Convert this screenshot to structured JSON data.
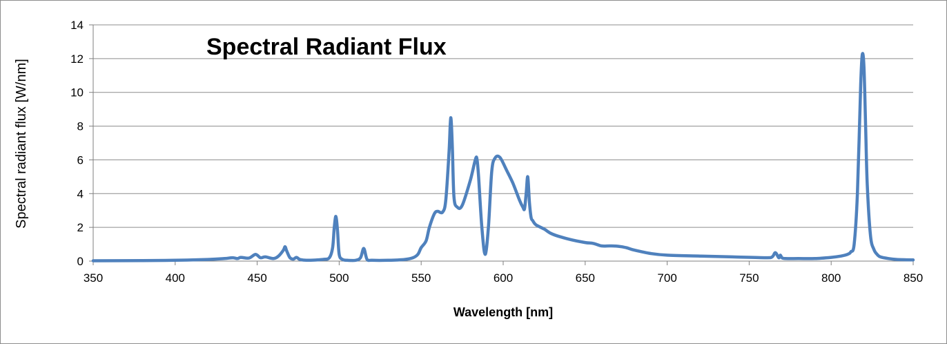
{
  "chart_data": {
    "type": "line",
    "title": "Spectral Radiant Flux",
    "xlabel": "Wavelength [nm]",
    "ylabel": "Spectral radiant flux [W/nm]",
    "xlim": [
      350,
      850
    ],
    "ylim": [
      0,
      14
    ],
    "xticks": [
      350,
      400,
      450,
      500,
      550,
      600,
      650,
      700,
      750,
      800,
      850
    ],
    "yticks": [
      0,
      2,
      4,
      6,
      8,
      10,
      12,
      14
    ],
    "grid": "horizontal",
    "line_color": "#4F81BD",
    "series": [
      {
        "x": [
          350,
          380,
          400,
          420,
          430,
          435,
          438,
          440,
          445,
          449,
          452,
          455,
          460,
          463,
          466,
          467,
          468,
          470,
          472,
          474,
          476,
          480,
          490,
          494,
          496,
          497,
          498,
          499,
          500,
          502,
          505,
          510,
          513,
          515,
          517,
          520,
          530,
          540,
          545,
          548,
          550,
          553,
          555,
          558,
          560,
          563,
          565,
          567,
          568,
          569,
          570,
          572,
          575,
          580,
          583,
          584,
          585,
          587,
          589,
          591,
          593,
          595,
          598,
          602,
          606,
          610,
          612,
          613,
          614,
          615,
          616,
          617,
          618,
          620,
          625,
          630,
          640,
          650,
          655,
          660,
          665,
          670,
          675,
          680,
          690,
          700,
          720,
          740,
          760,
          764,
          766,
          768,
          769,
          770,
          772,
          780,
          790,
          800,
          806,
          810,
          812,
          814,
          816,
          818,
          819,
          820,
          821,
          822,
          824,
          826,
          828,
          830,
          835,
          840,
          850
        ],
        "y": [
          0.02,
          0.03,
          0.05,
          0.1,
          0.15,
          0.2,
          0.15,
          0.22,
          0.18,
          0.4,
          0.2,
          0.25,
          0.15,
          0.3,
          0.65,
          0.85,
          0.6,
          0.2,
          0.12,
          0.22,
          0.1,
          0.05,
          0.1,
          0.2,
          0.8,
          2.0,
          2.65,
          1.8,
          0.4,
          0.1,
          0.05,
          0.05,
          0.2,
          0.75,
          0.1,
          0.05,
          0.05,
          0.1,
          0.2,
          0.4,
          0.8,
          1.2,
          2.0,
          2.8,
          2.95,
          2.9,
          3.6,
          6.5,
          8.5,
          6.8,
          3.8,
          3.2,
          3.3,
          4.8,
          6.0,
          6.05,
          5.0,
          2.0,
          0.4,
          2.0,
          5.3,
          6.1,
          6.15,
          5.4,
          4.6,
          3.6,
          3.2,
          3.1,
          4.0,
          5.0,
          3.5,
          2.6,
          2.4,
          2.15,
          1.9,
          1.6,
          1.3,
          1.1,
          1.05,
          0.9,
          0.9,
          0.88,
          0.8,
          0.65,
          0.45,
          0.35,
          0.3,
          0.25,
          0.2,
          0.25,
          0.5,
          0.2,
          0.35,
          0.2,
          0.15,
          0.15,
          0.15,
          0.22,
          0.3,
          0.4,
          0.55,
          1.0,
          4.0,
          10.5,
          12.25,
          11.5,
          8.0,
          4.5,
          1.5,
          0.7,
          0.4,
          0.25,
          0.15,
          0.1,
          0.07
        ]
      }
    ]
  }
}
